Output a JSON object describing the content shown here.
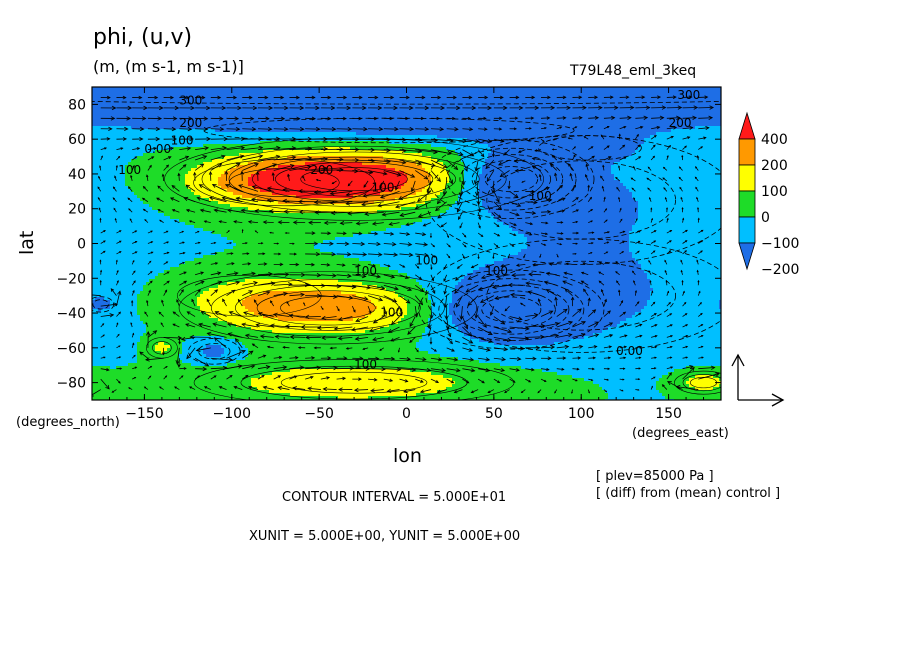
{
  "title": "phi, (u,v)",
  "units_line": "(m, (m s-1, m s-1)]",
  "run_label": "T79L48_eml_3keq",
  "xlabel": "lon",
  "ylabel": "lat",
  "x_units": "(degrees_east)",
  "y_units": "(degrees_north)",
  "plev_note": "[ plev=85000 Pa ]",
  "diff_note": "[ (diff) from (mean) control ]",
  "contour_interval": "CONTOUR INTERVAL = 5.000E+01",
  "xy_units": "XUNIT = 5.000E+00, YUNIT = 5.000E+00",
  "chart_data": {
    "type": "heatmap",
    "xlim": [
      -180,
      180
    ],
    "ylim": [
      -90,
      90
    ],
    "x_ticks": [
      -150,
      -100,
      -50,
      0,
      50,
      100,
      150
    ],
    "x_tick_labels": [
      "−150",
      "−100",
      "−50",
      "0",
      "50",
      "100",
      "150"
    ],
    "y_ticks": [
      -80,
      -60,
      -40,
      -20,
      0,
      20,
      40,
      60,
      80
    ],
    "y_tick_labels": [
      "−80",
      "−60",
      "−40",
      "−20",
      "0",
      "20",
      "40",
      "60",
      "80"
    ],
    "colorbar": {
      "levels": [
        -200,
        -100,
        0,
        100,
        200,
        400
      ],
      "labels": [
        "−200",
        "−100",
        "0",
        "100",
        "200",
        "400"
      ],
      "colors": [
        "#1e6ee6",
        "#00bfff",
        "#1edc28",
        "#ffff00",
        "#ff9900",
        "#ff1a1a"
      ]
    },
    "background": 0,
    "field_features": [
      {
        "lon": -30,
        "lat": 37,
        "value": 380,
        "sx": 55,
        "sy": 12
      },
      {
        "lon": -70,
        "lat": 35,
        "value": 120,
        "sx": 35,
        "sy": 9
      },
      {
        "lon": -45,
        "lat": -37,
        "value": 260,
        "sx": 45,
        "sy": 11
      },
      {
        "lon": -90,
        "lat": -30,
        "value": 70,
        "sx": 35,
        "sy": 10
      },
      {
        "lon": -30,
        "lat": -80,
        "value": 180,
        "sx": 55,
        "sy": 8
      },
      {
        "lon": 60,
        "lat": 37,
        "value": -260,
        "sx": 25,
        "sy": 12
      },
      {
        "lon": 60,
        "lat": -38,
        "value": -280,
        "sx": 28,
        "sy": 12
      },
      {
        "lon": 100,
        "lat": 25,
        "value": -110,
        "sx": 60,
        "sy": 25
      },
      {
        "lon": 100,
        "lat": -30,
        "value": -110,
        "sx": 60,
        "sy": 22
      },
      {
        "lon": 0,
        "lat": 88,
        "value": -290,
        "sx": 500,
        "sy": 13
      },
      {
        "lon": -10,
        "lat": 65,
        "value": -90,
        "sx": 90,
        "sy": 6
      },
      {
        "lon": 105,
        "lat": 55,
        "value": -70,
        "sx": 25,
        "sy": 6
      },
      {
        "lon": -110,
        "lat": -62,
        "value": -140,
        "sx": 10,
        "sy": 5
      },
      {
        "lon": -175,
        "lat": -35,
        "value": -140,
        "sx": 5,
        "sy": 3
      },
      {
        "lon": 170,
        "lat": -80,
        "value": 170,
        "sx": 10,
        "sy": 4
      },
      {
        "lon": -140,
        "lat": -60,
        "value": 130,
        "sx": 6,
        "sy": 4
      }
    ],
    "contour_labels": [
      {
        "text": "300",
        "lon": -130,
        "lat": 80
      },
      {
        "text": "300",
        "lon": 155,
        "lat": 83
      },
      {
        "text": "200",
        "lon": -130,
        "lat": 67
      },
      {
        "text": "200",
        "lon": 150,
        "lat": 67
      },
      {
        "text": "100",
        "lon": -135,
        "lat": 57
      },
      {
        "text": "0.00",
        "lon": -150,
        "lat": 52
      },
      {
        "text": "100",
        "lon": -165,
        "lat": 40
      },
      {
        "text": "200",
        "lon": -55,
        "lat": 40
      },
      {
        "text": "100",
        "lon": -20,
        "lat": 30
      },
      {
        "text": "100",
        "lon": 70,
        "lat": 25
      },
      {
        "text": "100",
        "lon": 5,
        "lat": -12
      },
      {
        "text": "100",
        "lon": 45,
        "lat": -18
      },
      {
        "text": "100",
        "lon": -30,
        "lat": -18
      },
      {
        "text": "100",
        "lon": -15,
        "lat": -42
      },
      {
        "text": "100",
        "lon": -30,
        "lat": -72
      },
      {
        "text": "0.00",
        "lon": 120,
        "lat": -64
      }
    ],
    "vector_reference": {
      "xunit": 5.0,
      "yunit": 5.0
    }
  }
}
